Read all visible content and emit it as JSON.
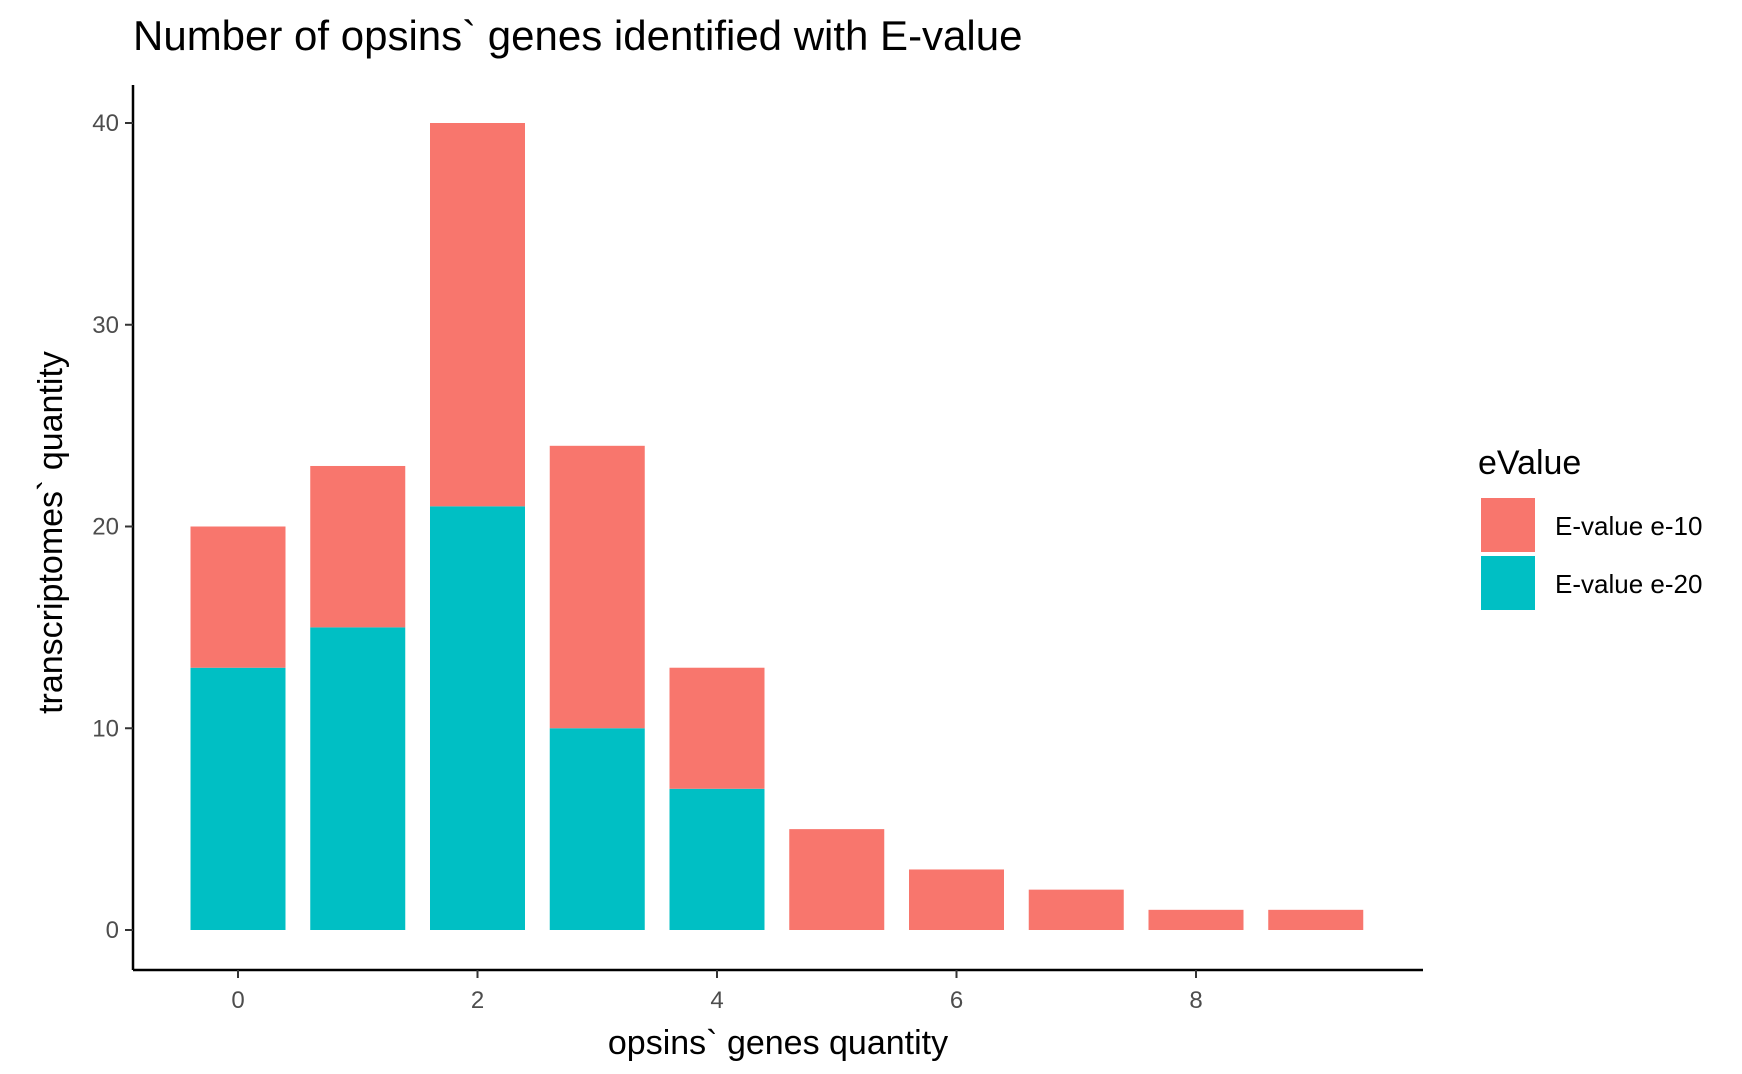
{
  "chart_data": {
    "type": "bar",
    "stacked": true,
    "title": "Number of opsins` genes identified with E-value",
    "xlabel": "opsins` genes quantity",
    "ylabel": "transcriptomes` quantity",
    "x": [
      0,
      1,
      2,
      3,
      4,
      5,
      6,
      7,
      8,
      9
    ],
    "xticks": [
      "0",
      "2",
      "4",
      "6",
      "8"
    ],
    "xtick_values": [
      0,
      2,
      4,
      6,
      8
    ],
    "yticks": [
      "0",
      "10",
      "20",
      "30",
      "40"
    ],
    "ytick_values": [
      0,
      10,
      20,
      30,
      40
    ],
    "xlim": [
      -0.5,
      9.5
    ],
    "ylim": [
      0,
      42
    ],
    "grid": false,
    "legend": {
      "title": "eValue",
      "placement": "right"
    },
    "series": [
      {
        "name": "E-value e-20",
        "color": "#00BFC4",
        "values": [
          13,
          15,
          21,
          10,
          7,
          0,
          0,
          0,
          0,
          0
        ]
      },
      {
        "name": "E-value e-10",
        "color": "#F8766D",
        "values": [
          7,
          8,
          19,
          14,
          6,
          5,
          3,
          2,
          1,
          1
        ]
      }
    ]
  }
}
